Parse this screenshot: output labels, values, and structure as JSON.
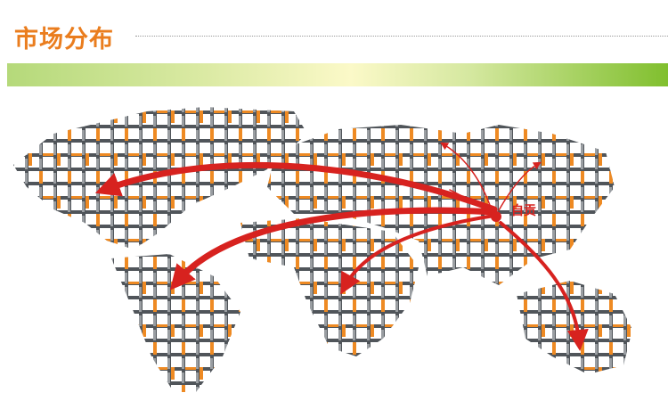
{
  "header": {
    "title": "市场分布"
  },
  "map": {
    "origin_label": "自贡",
    "colors": {
      "arrow": "#d7221f",
      "title": "#ea7d1e",
      "tile_orange": "#ee8a23",
      "tile_gray": "#50555a"
    },
    "regions": [
      "north-america",
      "south-america",
      "europe-asia",
      "africa",
      "australia"
    ]
  }
}
